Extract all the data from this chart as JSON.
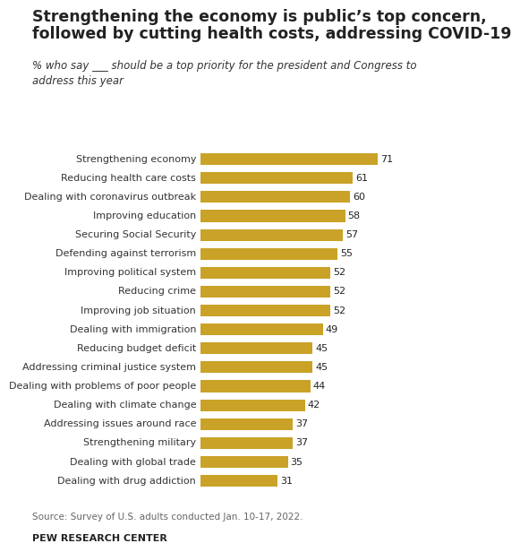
{
  "title_line1": "Strengthening the economy is public’s top concern,",
  "title_line2": "followed by cutting health costs, addressing COVID-19",
  "subtitle": "% who say ___ should be a top priority for the president and Congress to\naddress this year",
  "categories": [
    "Strengthening economy",
    "Reducing health care costs",
    "Dealing with coronavirus outbreak",
    "Improving education",
    "Securing Social Security",
    "Defending against terrorism",
    "Improving political system",
    "Reducing crime",
    "Improving job situation",
    "Dealing with immigration",
    "Reducing budget deficit",
    "Addressing criminal justice system",
    "Dealing with problems of poor people",
    "Dealing with climate change",
    "Addressing issues around race",
    "Strengthening military",
    "Dealing with global trade",
    "Dealing with drug addiction"
  ],
  "values": [
    71,
    61,
    60,
    58,
    57,
    55,
    52,
    52,
    52,
    49,
    45,
    45,
    44,
    42,
    37,
    37,
    35,
    31
  ],
  "bar_color": "#C9A227",
  "text_color": "#222222",
  "label_color": "#333333",
  "source_color": "#666666",
  "background_color": "#FFFFFF",
  "source_text": "Source: Survey of U.S. adults conducted Jan. 10-17, 2022.",
  "footer_text": "PEW RESEARCH CENTER",
  "xlim": [
    0,
    80
  ],
  "title_fontsize": 12.5,
  "subtitle_fontsize": 8.5,
  "label_fontsize": 8,
  "value_fontsize": 8,
  "source_fontsize": 7.5,
  "footer_fontsize": 8
}
